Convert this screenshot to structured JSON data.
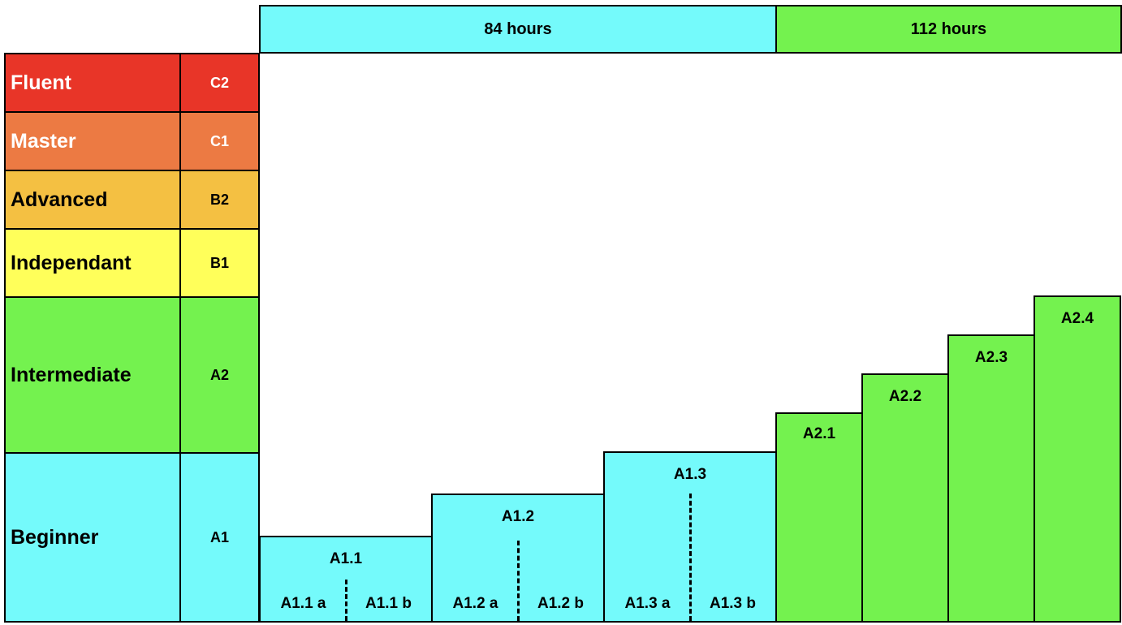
{
  "header": {
    "hours_84": "84 hours",
    "hours_112": "112 hours"
  },
  "levels": [
    {
      "name": "Fluent",
      "code": "C2",
      "color": "#E83528"
    },
    {
      "name": "Master",
      "code": "C1",
      "color": "#EC7A43"
    },
    {
      "name": "Advanced",
      "code": "B2",
      "color": "#F4C042"
    },
    {
      "name": "Independant",
      "code": "B1",
      "color": "#FFFF5A"
    },
    {
      "name": "Intermediate",
      "code": "A2",
      "color": "#74F24F"
    },
    {
      "name": "Beginner",
      "code": "A1",
      "color": "#74FAFB"
    }
  ],
  "steps_a1": [
    {
      "label": "A1.1",
      "sub": [
        "A1.1 a",
        "A1.1 b"
      ]
    },
    {
      "label": "A1.2",
      "sub": [
        "A1.2 a",
        "A1.2 b"
      ]
    },
    {
      "label": "A1.3",
      "sub": [
        "A1.3 a",
        "A1.3 b"
      ]
    }
  ],
  "steps_a2": [
    {
      "label": "A2.1"
    },
    {
      "label": "A2.2"
    },
    {
      "label": "A2.3"
    },
    {
      "label": "A2.4"
    }
  ],
  "colors": {
    "a1": "#74FAFB",
    "a2": "#74F24F"
  }
}
